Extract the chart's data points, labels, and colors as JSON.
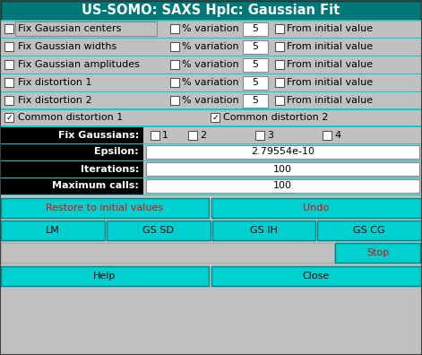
{
  "title": "US-SOMO: SAXS Hplc: Gaussian Fit",
  "title_bg": "#007878",
  "title_fg": "#ffffff",
  "main_bg": "#c0c0c0",
  "cyan": "#00d0d0",
  "black_panel": "#000000",
  "white_field": "#ffffff",
  "gray_field": "#d4d0c8",
  "rows": [
    "Fix Gaussian centers",
    "Fix Gaussian widths",
    "Fix Gaussian amplitudes",
    "Fix distortion 1",
    "Fix distortion 2"
  ],
  "epsilon": "2.79554e-10",
  "iterations": "100",
  "max_calls": "100"
}
